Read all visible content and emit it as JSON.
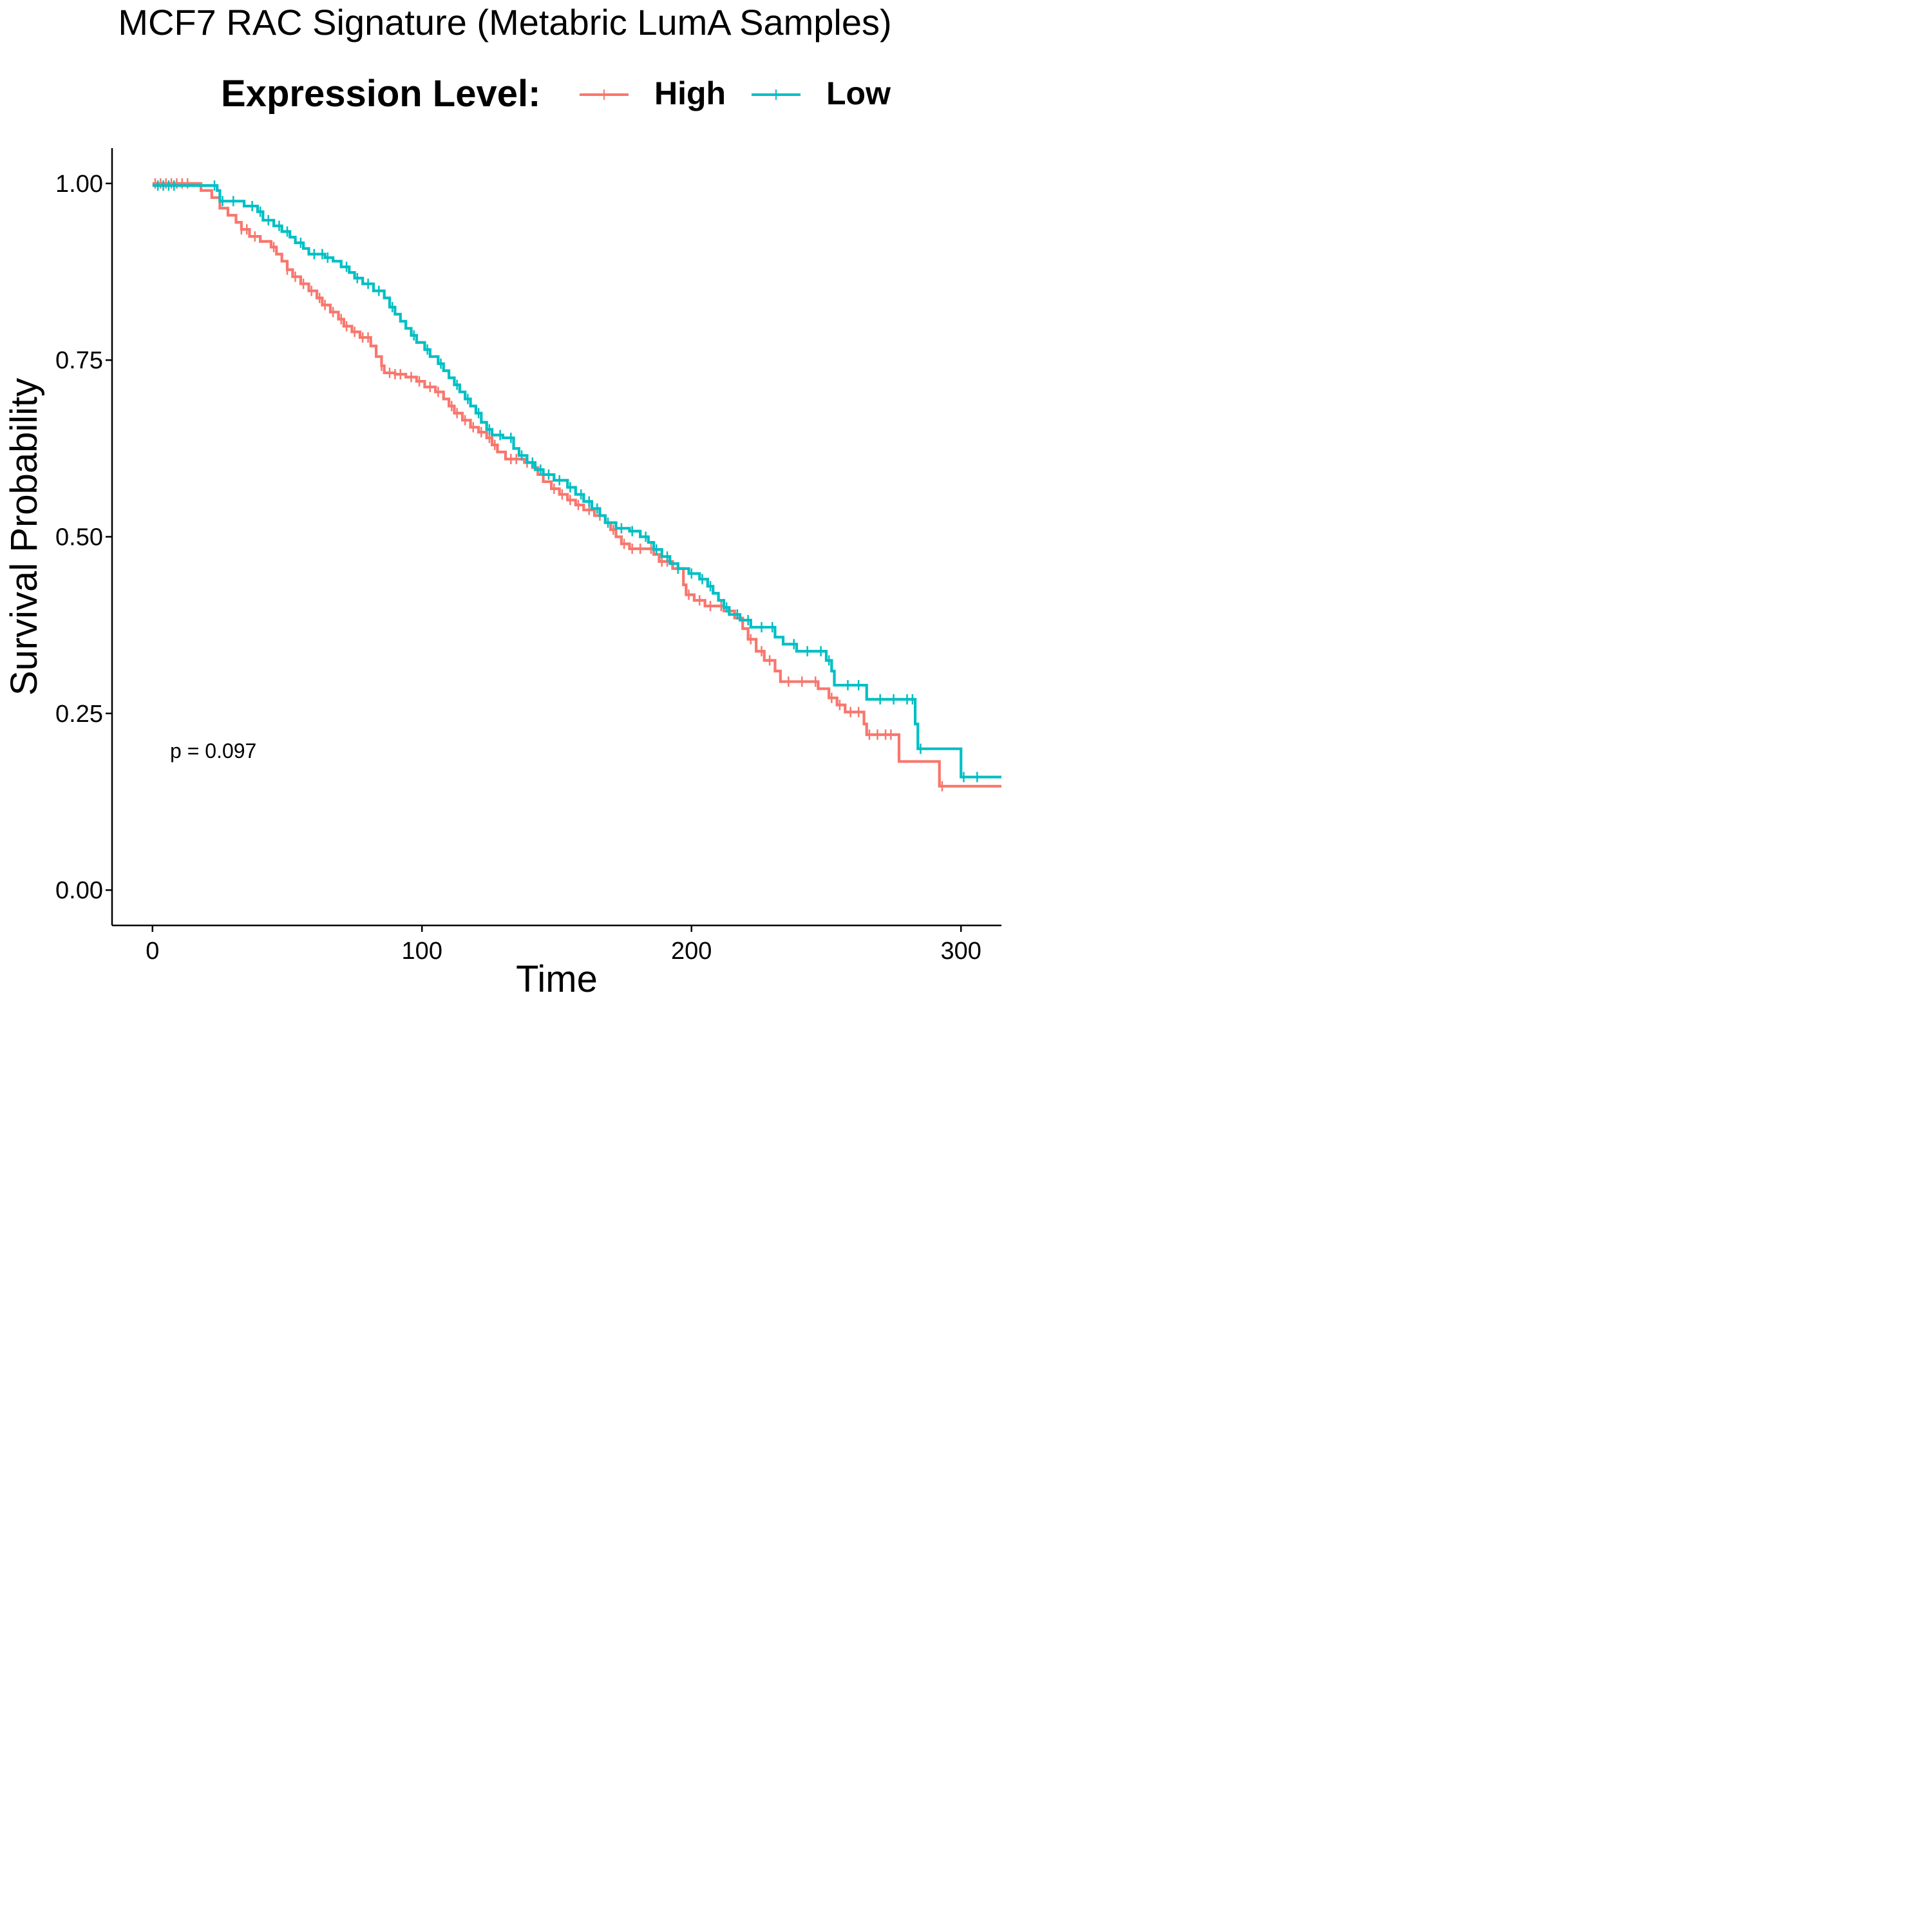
{
  "title": "MCF7 RAC Signature (Metabric LumA Samples)",
  "legend": {
    "title": "Expression Level:",
    "items": [
      {
        "label": "High",
        "color": "#F8766D"
      },
      {
        "label": "Low",
        "color": "#00BFC4"
      }
    ]
  },
  "annotation": "p = 0.097",
  "chart_data": {
    "type": "line",
    "subtype": "kaplan-meier step",
    "title": "MCF7 RAC Signature (Metabric LumA Samples)",
    "xlabel": "Time",
    "ylabel": "Survival Probability",
    "xlim": [
      -15,
      315
    ],
    "ylim": [
      -0.05,
      1.05
    ],
    "xticks": [
      0,
      100,
      200,
      300
    ],
    "xtick_labels": [
      "0",
      "100",
      "200",
      "300"
    ],
    "yticks": [
      0,
      0.25,
      0.5,
      0.75,
      1.0
    ],
    "ytick_labels": [
      "0.00",
      "0.25",
      "0.50",
      "0.75",
      "1.00"
    ],
    "grid": false,
    "legend_position": "top",
    "annotation": "p = 0.097",
    "series": [
      {
        "name": "High",
        "color": "#F8766D",
        "steps": [
          [
            0,
            1.0
          ],
          [
            14,
            1.0
          ],
          [
            18,
            0.99
          ],
          [
            22,
            0.98
          ],
          [
            25,
            0.965
          ],
          [
            28,
            0.955
          ],
          [
            31,
            0.945
          ],
          [
            33,
            0.935
          ],
          [
            36,
            0.925
          ],
          [
            40,
            0.918
          ],
          [
            44,
            0.91
          ],
          [
            46,
            0.9
          ],
          [
            48,
            0.89
          ],
          [
            50,
            0.878
          ],
          [
            52,
            0.868
          ],
          [
            55,
            0.858
          ],
          [
            58,
            0.848
          ],
          [
            61,
            0.838
          ],
          [
            63,
            0.828
          ],
          [
            66,
            0.818
          ],
          [
            69,
            0.808
          ],
          [
            71,
            0.798
          ],
          [
            74,
            0.79
          ],
          [
            77,
            0.782
          ],
          [
            81,
            0.77
          ],
          [
            83,
            0.755
          ],
          [
            85,
            0.742
          ],
          [
            86,
            0.732
          ],
          [
            90,
            0.73
          ],
          [
            94,
            0.726
          ],
          [
            98,
            0.72
          ],
          [
            101,
            0.712
          ],
          [
            105,
            0.705
          ],
          [
            108,
            0.695
          ],
          [
            110,
            0.685
          ],
          [
            112,
            0.675
          ],
          [
            115,
            0.665
          ],
          [
            118,
            0.655
          ],
          [
            121,
            0.648
          ],
          [
            124,
            0.64
          ],
          [
            126,
            0.63
          ],
          [
            128,
            0.62
          ],
          [
            131,
            0.61
          ],
          [
            138,
            0.605
          ],
          [
            141,
            0.598
          ],
          [
            143,
            0.588
          ],
          [
            145,
            0.578
          ],
          [
            148,
            0.568
          ],
          [
            151,
            0.56
          ],
          [
            154,
            0.552
          ],
          [
            157,
            0.545
          ],
          [
            160,
            0.538
          ],
          [
            164,
            0.53
          ],
          [
            168,
            0.52
          ],
          [
            170,
            0.51
          ],
          [
            172,
            0.5
          ],
          [
            174,
            0.49
          ],
          [
            177,
            0.483
          ],
          [
            186,
            0.475
          ],
          [
            188,
            0.465
          ],
          [
            193,
            0.455
          ],
          [
            197,
            0.432
          ],
          [
            198,
            0.418
          ],
          [
            201,
            0.41
          ],
          [
            205,
            0.402
          ],
          [
            212,
            0.395
          ],
          [
            216,
            0.385
          ],
          [
            219,
            0.37
          ],
          [
            221,
            0.355
          ],
          [
            224,
            0.338
          ],
          [
            227,
            0.325
          ],
          [
            231,
            0.31
          ],
          [
            233,
            0.295
          ],
          [
            247,
            0.285
          ],
          [
            251,
            0.272
          ],
          [
            254,
            0.262
          ],
          [
            257,
            0.252
          ],
          [
            264,
            0.235
          ],
          [
            265,
            0.22
          ],
          [
            277,
            0.182
          ],
          [
            292,
            0.147
          ],
          [
            315,
            0.147
          ]
        ],
        "censor_times": [
          1,
          3,
          5,
          7,
          9,
          11,
          13,
          33,
          35,
          38,
          45,
          50,
          53,
          56,
          59,
          62,
          64,
          67,
          70,
          72,
          75,
          78,
          80,
          85,
          88,
          90,
          92,
          96,
          99,
          103,
          106,
          111,
          113,
          116,
          119,
          122,
          125,
          127,
          133,
          135,
          139,
          149,
          152,
          155,
          158,
          162,
          166,
          171,
          175,
          178,
          181,
          185,
          189,
          191,
          195,
          199,
          203,
          207,
          211,
          222,
          226,
          229,
          236,
          241,
          246,
          252,
          255,
          259,
          262,
          266,
          269,
          272,
          274,
          293
        ]
      },
      {
        "name": "Low",
        "color": "#00BFC4",
        "steps": [
          [
            0,
            0.997
          ],
          [
            22,
            0.997
          ],
          [
            24,
            0.99
          ],
          [
            25,
            0.975
          ],
          [
            34,
            0.968
          ],
          [
            39,
            0.96
          ],
          [
            41,
            0.948
          ],
          [
            45,
            0.94
          ],
          [
            48,
            0.932
          ],
          [
            51,
            0.924
          ],
          [
            53,
            0.916
          ],
          [
            56,
            0.908
          ],
          [
            58,
            0.9
          ],
          [
            64,
            0.895
          ],
          [
            67,
            0.89
          ],
          [
            70,
            0.882
          ],
          [
            73,
            0.874
          ],
          [
            75,
            0.866
          ],
          [
            78,
            0.858
          ],
          [
            82,
            0.848
          ],
          [
            86,
            0.838
          ],
          [
            88,
            0.825
          ],
          [
            90,
            0.815
          ],
          [
            92,
            0.805
          ],
          [
            94,
            0.795
          ],
          [
            96,
            0.785
          ],
          [
            98,
            0.775
          ],
          [
            101,
            0.765
          ],
          [
            103,
            0.755
          ],
          [
            106,
            0.745
          ],
          [
            108,
            0.735
          ],
          [
            110,
            0.725
          ],
          [
            112,
            0.715
          ],
          [
            114,
            0.705
          ],
          [
            116,
            0.695
          ],
          [
            118,
            0.685
          ],
          [
            120,
            0.675
          ],
          [
            122,
            0.662
          ],
          [
            124,
            0.652
          ],
          [
            126,
            0.644
          ],
          [
            130,
            0.64
          ],
          [
            134,
            0.625
          ],
          [
            136,
            0.615
          ],
          [
            139,
            0.605
          ],
          [
            142,
            0.595
          ],
          [
            145,
            0.588
          ],
          [
            149,
            0.58
          ],
          [
            154,
            0.57
          ],
          [
            157,
            0.56
          ],
          [
            160,
            0.55
          ],
          [
            163,
            0.54
          ],
          [
            166,
            0.53
          ],
          [
            168,
            0.52
          ],
          [
            172,
            0.512
          ],
          [
            177,
            0.508
          ],
          [
            181,
            0.5
          ],
          [
            184,
            0.492
          ],
          [
            186,
            0.482
          ],
          [
            189,
            0.472
          ],
          [
            192,
            0.462
          ],
          [
            195,
            0.455
          ],
          [
            199,
            0.448
          ],
          [
            203,
            0.44
          ],
          [
            206,
            0.43
          ],
          [
            208,
            0.42
          ],
          [
            210,
            0.41
          ],
          [
            212,
            0.4
          ],
          [
            214,
            0.39
          ],
          [
            218,
            0.382
          ],
          [
            222,
            0.372
          ],
          [
            231,
            0.358
          ],
          [
            234,
            0.348
          ],
          [
            239,
            0.338
          ],
          [
            250,
            0.325
          ],
          [
            252,
            0.31
          ],
          [
            253,
            0.29
          ],
          [
            265,
            0.27
          ],
          [
            283,
            0.235
          ],
          [
            284,
            0.2
          ],
          [
            300,
            0.16
          ],
          [
            315,
            0.16
          ]
        ],
        "censor_times": [
          2,
          4,
          6,
          8,
          23,
          26,
          30,
          37,
          40,
          43,
          47,
          50,
          55,
          60,
          63,
          65,
          72,
          76,
          80,
          84,
          89,
          97,
          102,
          107,
          113,
          117,
          121,
          125,
          129,
          133,
          137,
          141,
          144,
          147,
          151,
          155,
          159,
          162,
          165,
          169,
          174,
          178,
          183,
          187,
          191,
          195,
          200,
          204,
          207,
          213,
          217,
          221,
          226,
          230,
          238,
          243,
          248,
          251,
          258,
          262,
          270,
          275,
          280,
          282,
          285,
          301,
          306
        ]
      }
    ]
  }
}
